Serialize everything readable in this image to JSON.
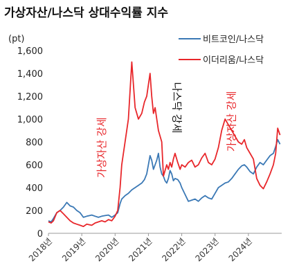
{
  "chart_data": {
    "type": "line",
    "title": "가상자산/나스닥 상대수익률 지수",
    "unit": "(pt)",
    "ylim": [
      0,
      1600
    ],
    "yticks": [
      "0",
      "200",
      "400",
      "600",
      "800",
      "1,000",
      "1,200",
      "1,400",
      "1,600"
    ],
    "xlim": [
      2018.0,
      2025.0
    ],
    "xticks": [
      "2018년",
      "2019년",
      "2020년",
      "2021년",
      "2022년",
      "2023년",
      "2024년"
    ],
    "legend_position": "top-right",
    "grid": false,
    "series": [
      {
        "name": "비트코인/나스닥",
        "color": "#3a78b5",
        "x": [
          2018.0,
          2018.08,
          2018.15,
          2018.25,
          2018.35,
          2018.45,
          2018.55,
          2018.65,
          2018.75,
          2018.85,
          2018.95,
          2019.05,
          2019.15,
          2019.3,
          2019.4,
          2019.5,
          2019.6,
          2019.7,
          2019.8,
          2019.9,
          2020.0,
          2020.08,
          2020.15,
          2020.2,
          2020.3,
          2020.4,
          2020.5,
          2020.6,
          2020.7,
          2020.8,
          2020.88,
          2020.95,
          2021.0,
          2021.05,
          2021.1,
          2021.15,
          2021.2,
          2021.25,
          2021.3,
          2021.35,
          2021.4,
          2021.45,
          2021.5,
          2021.55,
          2021.6,
          2021.65,
          2021.7,
          2021.75,
          2021.8,
          2021.88,
          2021.95,
          2022.0,
          2022.1,
          2022.2,
          2022.3,
          2022.4,
          2022.5,
          2022.6,
          2022.7,
          2022.8,
          2022.9,
          2023.0,
          2023.1,
          2023.2,
          2023.3,
          2023.4,
          2023.5,
          2023.6,
          2023.7,
          2023.8,
          2023.88,
          2023.95,
          2024.05,
          2024.15,
          2024.25,
          2024.35,
          2024.45,
          2024.55,
          2024.65,
          2024.75,
          2024.82,
          2024.88,
          2024.95
        ],
        "values": [
          110,
          100,
          130,
          180,
          200,
          230,
          270,
          240,
          230,
          200,
          180,
          140,
          150,
          160,
          150,
          140,
          150,
          155,
          160,
          140,
          160,
          180,
          260,
          300,
          330,
          350,
          380,
          400,
          420,
          440,
          470,
          520,
          600,
          680,
          640,
          560,
          600,
          640,
          700,
          580,
          520,
          500,
          460,
          440,
          480,
          550,
          520,
          460,
          480,
          470,
          440,
          400,
          340,
          280,
          290,
          300,
          280,
          310,
          330,
          310,
          300,
          350,
          400,
          420,
          440,
          450,
          480,
          520,
          560,
          590,
          600,
          580,
          540,
          520,
          580,
          620,
          600,
          640,
          680,
          700,
          760,
          820,
          780
        ]
      },
      {
        "name": "이더리움/나스닥",
        "color": "#e8262a",
        "x": [
          2018.0,
          2018.08,
          2018.15,
          2018.25,
          2018.35,
          2018.45,
          2018.55,
          2018.65,
          2018.75,
          2018.85,
          2018.95,
          2019.05,
          2019.15,
          2019.3,
          2019.4,
          2019.5,
          2019.6,
          2019.7,
          2019.8,
          2019.9,
          2020.0,
          2020.08,
          2020.15,
          2020.2,
          2020.3,
          2020.4,
          2020.5,
          2020.6,
          2020.7,
          2020.8,
          2020.88,
          2020.95,
          2021.0,
          2021.05,
          2021.1,
          2021.15,
          2021.2,
          2021.25,
          2021.3,
          2021.35,
          2021.4,
          2021.45,
          2021.5,
          2021.55,
          2021.6,
          2021.65,
          2021.7,
          2021.75,
          2021.8,
          2021.88,
          2021.95,
          2022.0,
          2022.1,
          2022.2,
          2022.3,
          2022.4,
          2022.5,
          2022.6,
          2022.7,
          2022.8,
          2022.9,
          2023.0,
          2023.1,
          2023.2,
          2023.3,
          2023.4,
          2023.5,
          2023.6,
          2023.7,
          2023.8,
          2023.88,
          2023.95,
          2024.05,
          2024.15,
          2024.25,
          2024.35,
          2024.45,
          2024.55,
          2024.65,
          2024.75,
          2024.82,
          2024.88,
          2024.95
        ],
        "values": [
          100,
          90,
          110,
          180,
          200,
          170,
          140,
          110,
          90,
          80,
          70,
          60,
          80,
          70,
          90,
          100,
          110,
          100,
          120,
          110,
          150,
          200,
          400,
          600,
          800,
          1000,
          1500,
          1100,
          1000,
          1050,
          1150,
          1200,
          1300,
          1400,
          1200,
          1050,
          1100,
          1000,
          900,
          850,
          800,
          500,
          550,
          600,
          560,
          620,
          580,
          650,
          700,
          620,
          560,
          600,
          580,
          620,
          640,
          580,
          600,
          660,
          700,
          620,
          600,
          650,
          750,
          900,
          1000,
          950,
          900,
          850,
          800,
          780,
          820,
          750,
          700,
          650,
          480,
          420,
          390,
          450,
          520,
          600,
          700,
          920,
          860
        ]
      }
    ],
    "annotations": [
      {
        "text": "가상자산 강세",
        "x": 2019.7,
        "y": 750,
        "rotate": -90,
        "color": "#e8262a"
      },
      {
        "text": "나스닥 강세",
        "x": 2021.75,
        "y": 1100,
        "rotate": 90,
        "color": "#111111"
      },
      {
        "text": "가상자산 강세",
        "x": 2023.6,
        "y": 980,
        "rotate": -90,
        "color": "#e8262a"
      }
    ]
  }
}
